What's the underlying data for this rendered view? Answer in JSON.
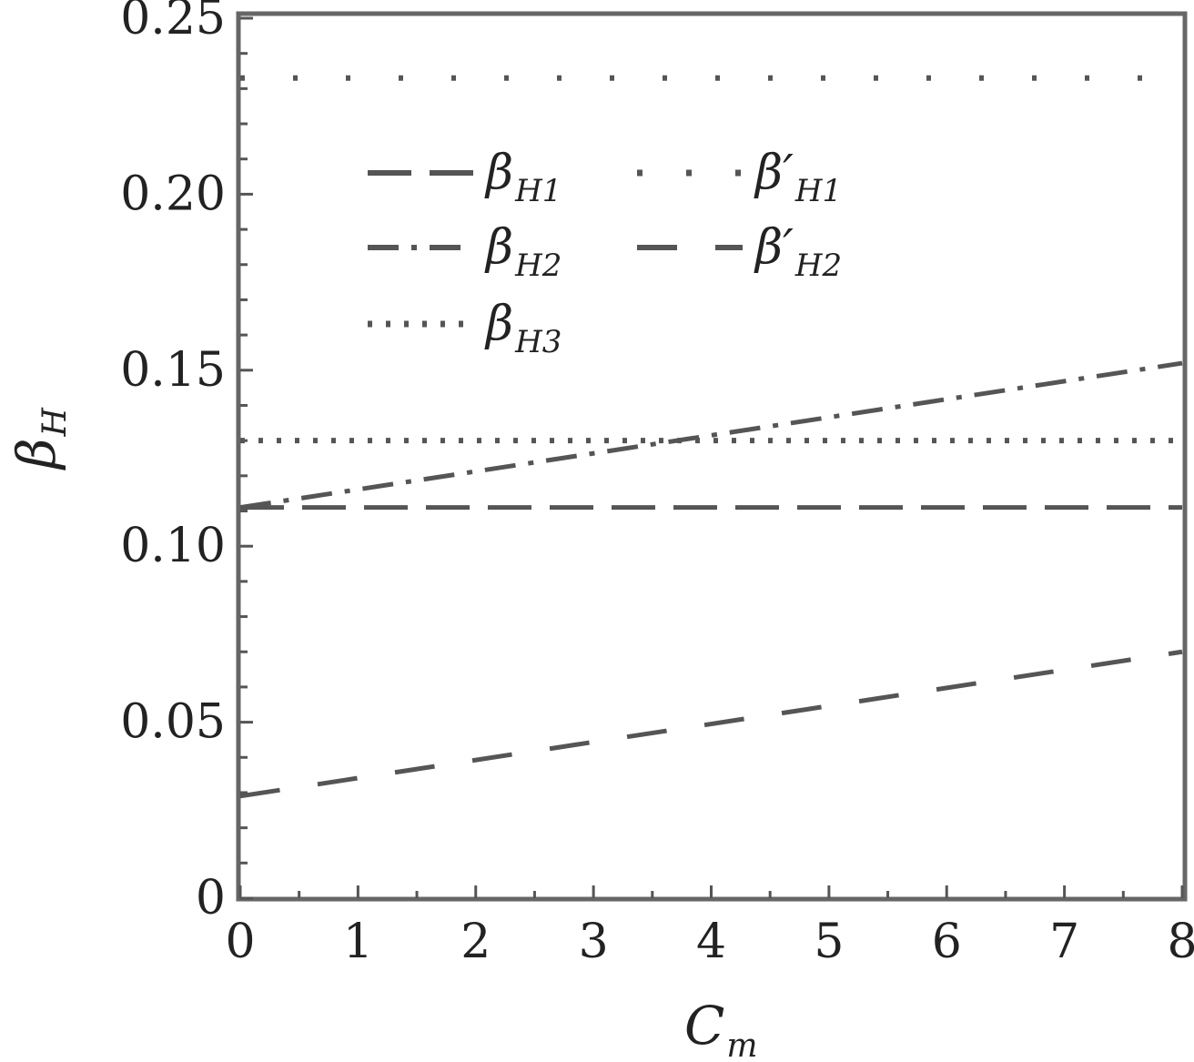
{
  "chart_data": {
    "type": "line",
    "xlabel": {
      "main": "C",
      "sub": "m"
    },
    "ylabel": {
      "main": "β",
      "sub": "H"
    },
    "xlim": [
      0,
      8
    ],
    "ylim": [
      0,
      0.25
    ],
    "x_ticks": [
      "0",
      "1",
      "2",
      "3",
      "4",
      "5",
      "6",
      "7",
      "8"
    ],
    "y_ticks": [
      "0",
      "0.05",
      "0.10",
      "0.15",
      "0.20",
      "0.25"
    ],
    "grid": false,
    "legend_position": "top-left",
    "line_color": "#555555",
    "series": [
      {
        "name": {
          "main": "β",
          "sub": "H1"
        },
        "style": "dash",
        "x": [
          0,
          8
        ],
        "y": [
          0.111,
          0.111
        ]
      },
      {
        "name": {
          "main": "β",
          "sub": "H2"
        },
        "style": "dashdot",
        "x": [
          0,
          8
        ],
        "y": [
          0.111,
          0.152
        ]
      },
      {
        "name": {
          "main": "β",
          "sub": "H3"
        },
        "style": "dot",
        "x": [
          0,
          8
        ],
        "y": [
          0.13,
          0.13
        ]
      },
      {
        "name": {
          "main": "β′",
          "sub": "H1"
        },
        "style": "sparse-dot",
        "x": [
          0,
          8
        ],
        "y": [
          0.233,
          0.233
        ]
      },
      {
        "name": {
          "main": "β′",
          "sub": "H2"
        },
        "style": "longdash",
        "x": [
          0,
          8
        ],
        "y": [
          0.029,
          0.07
        ]
      }
    ]
  }
}
